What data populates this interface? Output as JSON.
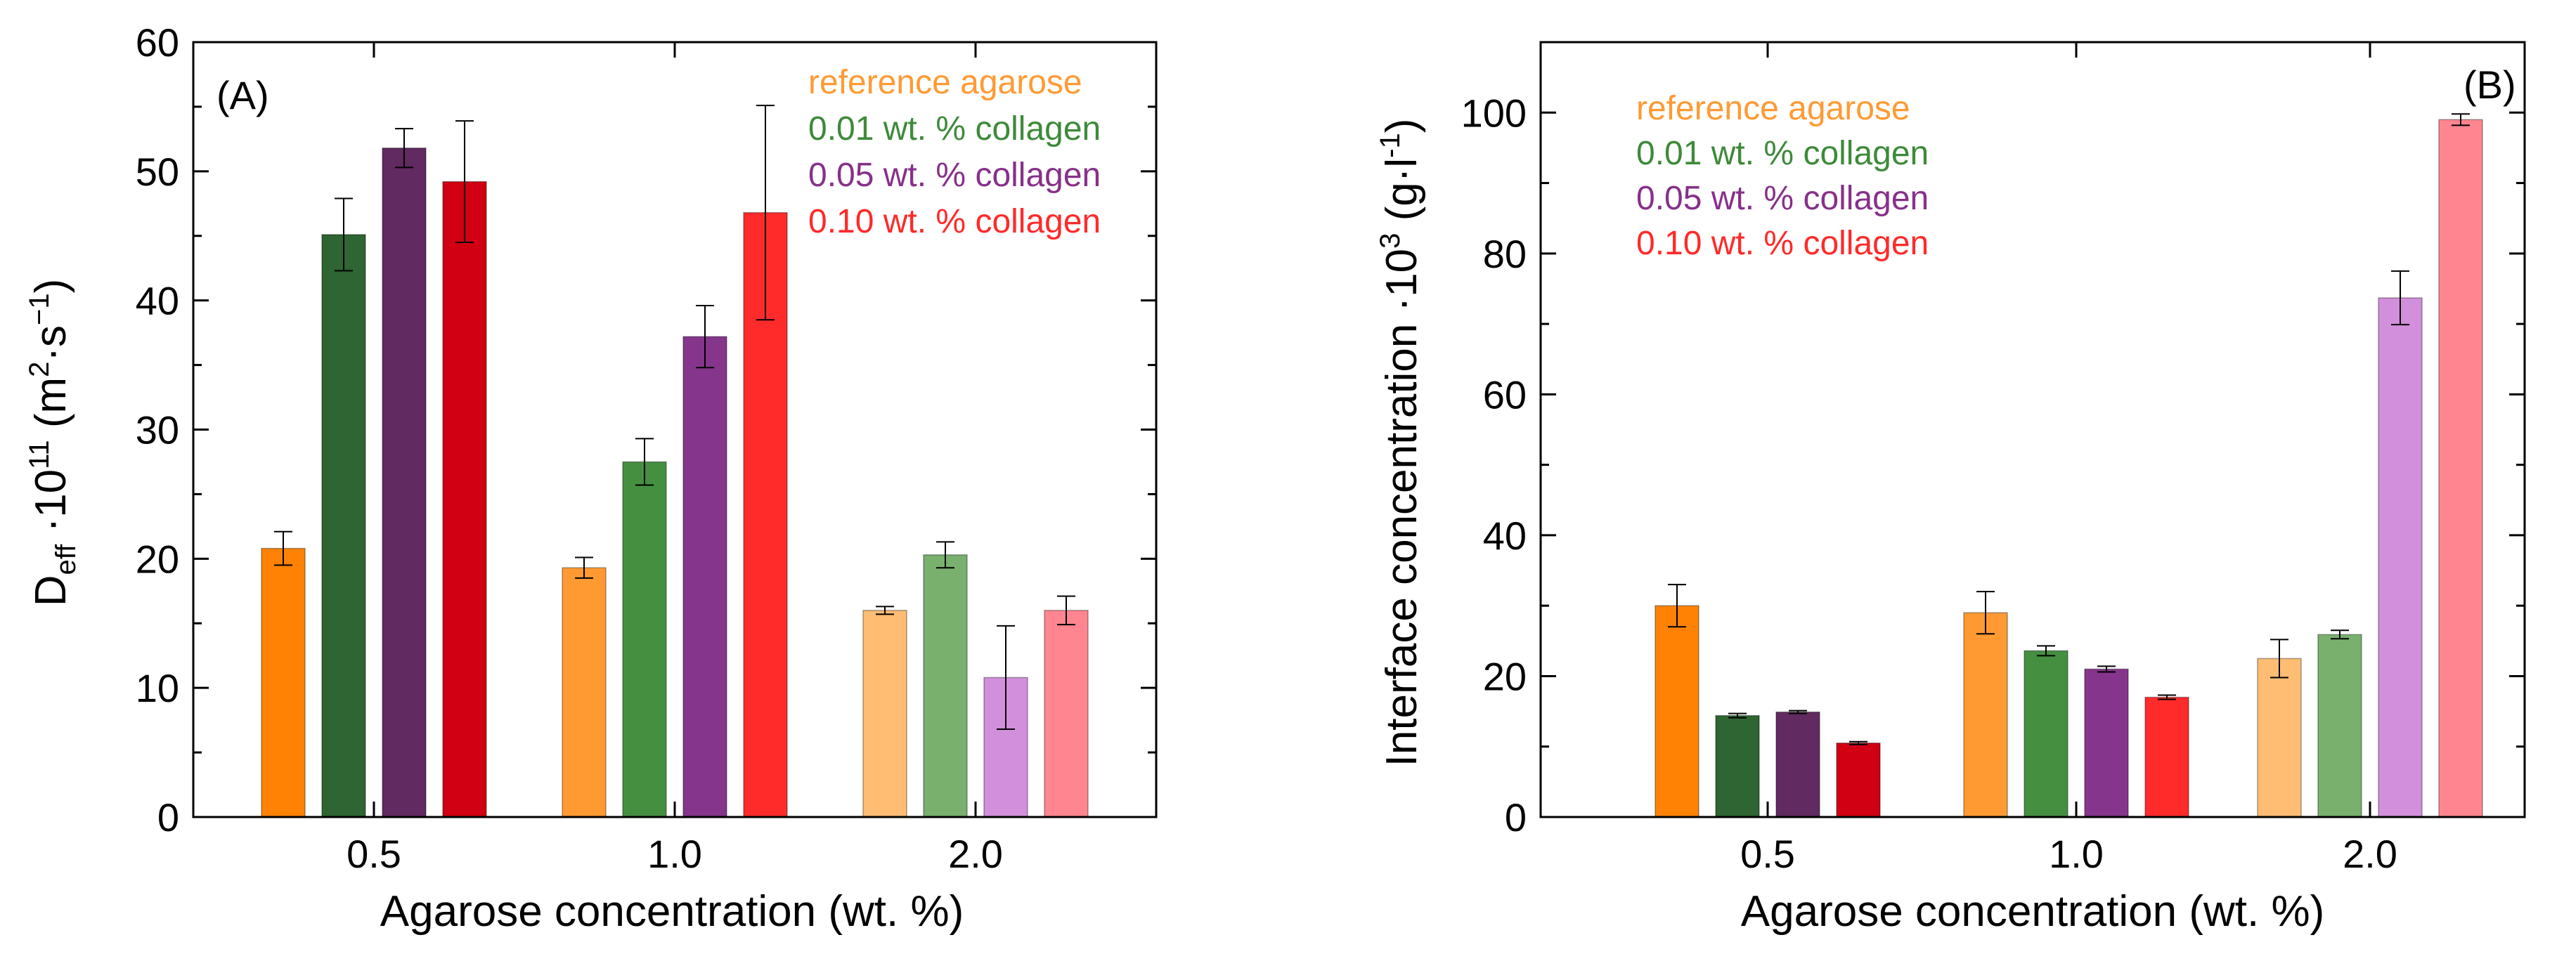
{
  "chart_data": [
    {
      "type": "bar",
      "panel_label": "(A)",
      "categories": [
        "0.5",
        "1.0",
        "2.0"
      ],
      "xlabel": "Agarose concentration (wt. %)",
      "ylabel": {
        "main": "D",
        "sub": "eff",
        "mult": " ·10",
        "exp": "11",
        "units_open": " (m",
        "units_exp1": "2",
        "units_mid": "·s",
        "units_exp2": "−1",
        "units_close": ")"
      },
      "ylim": [
        0,
        60
      ],
      "yticks": [
        "0",
        "10",
        "20",
        "30",
        "40",
        "50",
        "60"
      ],
      "legend_position": "top-right",
      "series": [
        {
          "name": "reference agarose",
          "values": [
            20.8,
            19.3,
            16.0
          ],
          "err": [
            1.3,
            0.8,
            0.3
          ]
        },
        {
          "name": "0.01 wt. % collagen",
          "values": [
            45.1,
            27.5,
            20.3
          ],
          "err": [
            2.8,
            1.8,
            1.0
          ]
        },
        {
          "name": "0.05 wt. % collagen",
          "values": [
            51.8,
            37.2,
            10.8
          ],
          "err": [
            1.5,
            2.4,
            4.0
          ]
        },
        {
          "name": "0.10 wt. % collagen",
          "values": [
            49.2,
            46.8,
            16.0
          ],
          "err": [
            4.7,
            8.3,
            1.1
          ]
        }
      ]
    },
    {
      "type": "bar",
      "panel_label": "(B)",
      "categories": [
        "0.5",
        "1.0",
        "2.0"
      ],
      "xlabel": "Agarose concentration (wt. %)",
      "ylabel": {
        "main": "Interface concentration ·10",
        "exp": "3",
        "units_open": " (g·l",
        "units_exp": "-1",
        "units_close": ")"
      },
      "ylim": [
        0,
        110
      ],
      "yticks": [
        "0",
        "20",
        "40",
        "60",
        "80",
        "100"
      ],
      "legend_position": "top-left",
      "series": [
        {
          "name": "reference agarose",
          "values": [
            30.0,
            29.0,
            22.5
          ],
          "err": [
            3.0,
            3.0,
            2.7
          ]
        },
        {
          "name": "0.01 wt. % collagen",
          "values": [
            14.4,
            23.6,
            25.9
          ],
          "err": [
            0.3,
            0.7,
            0.6
          ]
        },
        {
          "name": "0.05 wt. % collagen",
          "values": [
            14.9,
            21.0,
            73.7
          ],
          "err": [
            0.2,
            0.4,
            3.8
          ]
        },
        {
          "name": "0.10 wt. % collagen",
          "values": [
            10.5,
            17.0,
            99.0
          ],
          "err": [
            0.2,
            0.3,
            0.8
          ]
        }
      ]
    }
  ],
  "colors": {
    "legend": [
      "#ff9a33",
      "#3e8a3a",
      "#87308a",
      "#ff2a2a"
    ],
    "bars": [
      [
        "#ff8205",
        "#ff9a33",
        "#ffbd74"
      ],
      [
        "#2e6532",
        "#458f41",
        "#79b06e"
      ],
      [
        "#612a60",
        "#86358c",
        "#d28fdb"
      ],
      [
        "#d10012",
        "#ff2b2b",
        "#ff8690"
      ]
    ],
    "axis": "#000000"
  }
}
